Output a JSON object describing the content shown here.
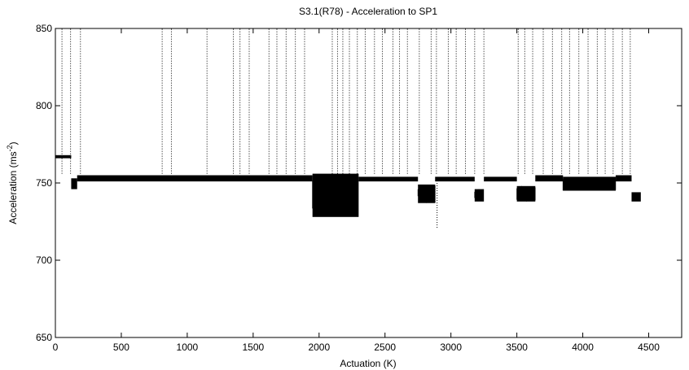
{
  "chart_data": {
    "type": "scatter",
    "title": "S3.1(R78) - Acceleration to SP1",
    "xlabel": "Actuation (K)",
    "ylabel_main": "Acceleration (ms",
    "ylabel_sup": "-2",
    "ylabel_close": ")",
    "xlim": [
      0,
      4750
    ],
    "ylim": [
      650,
      850
    ],
    "x_ticks": [
      0,
      500,
      1000,
      1500,
      2000,
      2500,
      3000,
      3500,
      4000,
      4500
    ],
    "y_ticks": [
      650,
      700,
      750,
      800,
      850
    ],
    "grid": false,
    "legend": "none",
    "series": [
      {
        "color": "#000000",
        "baseline_segments": [
          {
            "x": [
              0,
              120
            ],
            "y": [
              766,
              768
            ]
          },
          {
            "x": [
              120,
              165
            ],
            "y": [
              746,
              753
            ]
          },
          {
            "x": [
              165,
              1950
            ],
            "y": [
              751,
              755
            ]
          },
          {
            "x": [
              1950,
              2300
            ],
            "y": [
              728,
              756
            ]
          },
          {
            "x": [
              2300,
              2750
            ],
            "y": [
              751,
              754
            ]
          },
          {
            "x": [
              2750,
              2880
            ],
            "y": [
              737,
              749
            ]
          },
          {
            "x": [
              2880,
              3180
            ],
            "y": [
              751,
              754
            ]
          },
          {
            "x": [
              3180,
              3250
            ],
            "y": [
              738,
              746
            ]
          },
          {
            "x": [
              3250,
              3500
            ],
            "y": [
              751,
              754
            ]
          },
          {
            "x": [
              3500,
              3640
            ],
            "y": [
              738,
              748
            ]
          },
          {
            "x": [
              3640,
              3850
            ],
            "y": [
              751,
              755
            ]
          },
          {
            "x": [
              3850,
              4250
            ],
            "y": [
              745,
              754
            ]
          },
          {
            "x": [
              4250,
              4370
            ],
            "y": [
              751,
              755
            ]
          },
          {
            "x": [
              4370,
              4440
            ],
            "y": [
              738,
              744
            ]
          }
        ],
        "spikes_x": [
          50,
          115,
          190,
          810,
          880,
          1150,
          1350,
          1400,
          1470,
          1620,
          1680,
          1750,
          1820,
          1890,
          2100,
          2140,
          2180,
          2230,
          2290,
          2350,
          2420,
          2480,
          2560,
          2610,
          2670,
          2760,
          2850,
          2890,
          2980,
          3040,
          3110,
          3180,
          3250,
          3510,
          3560,
          3620,
          3700,
          3770,
          3840,
          3900,
          3970,
          4040,
          4110,
          4170,
          4230,
          4300,
          4360
        ],
        "dip_points": [
          {
            "x": 2895,
            "y": 721
          }
        ]
      }
    ]
  }
}
